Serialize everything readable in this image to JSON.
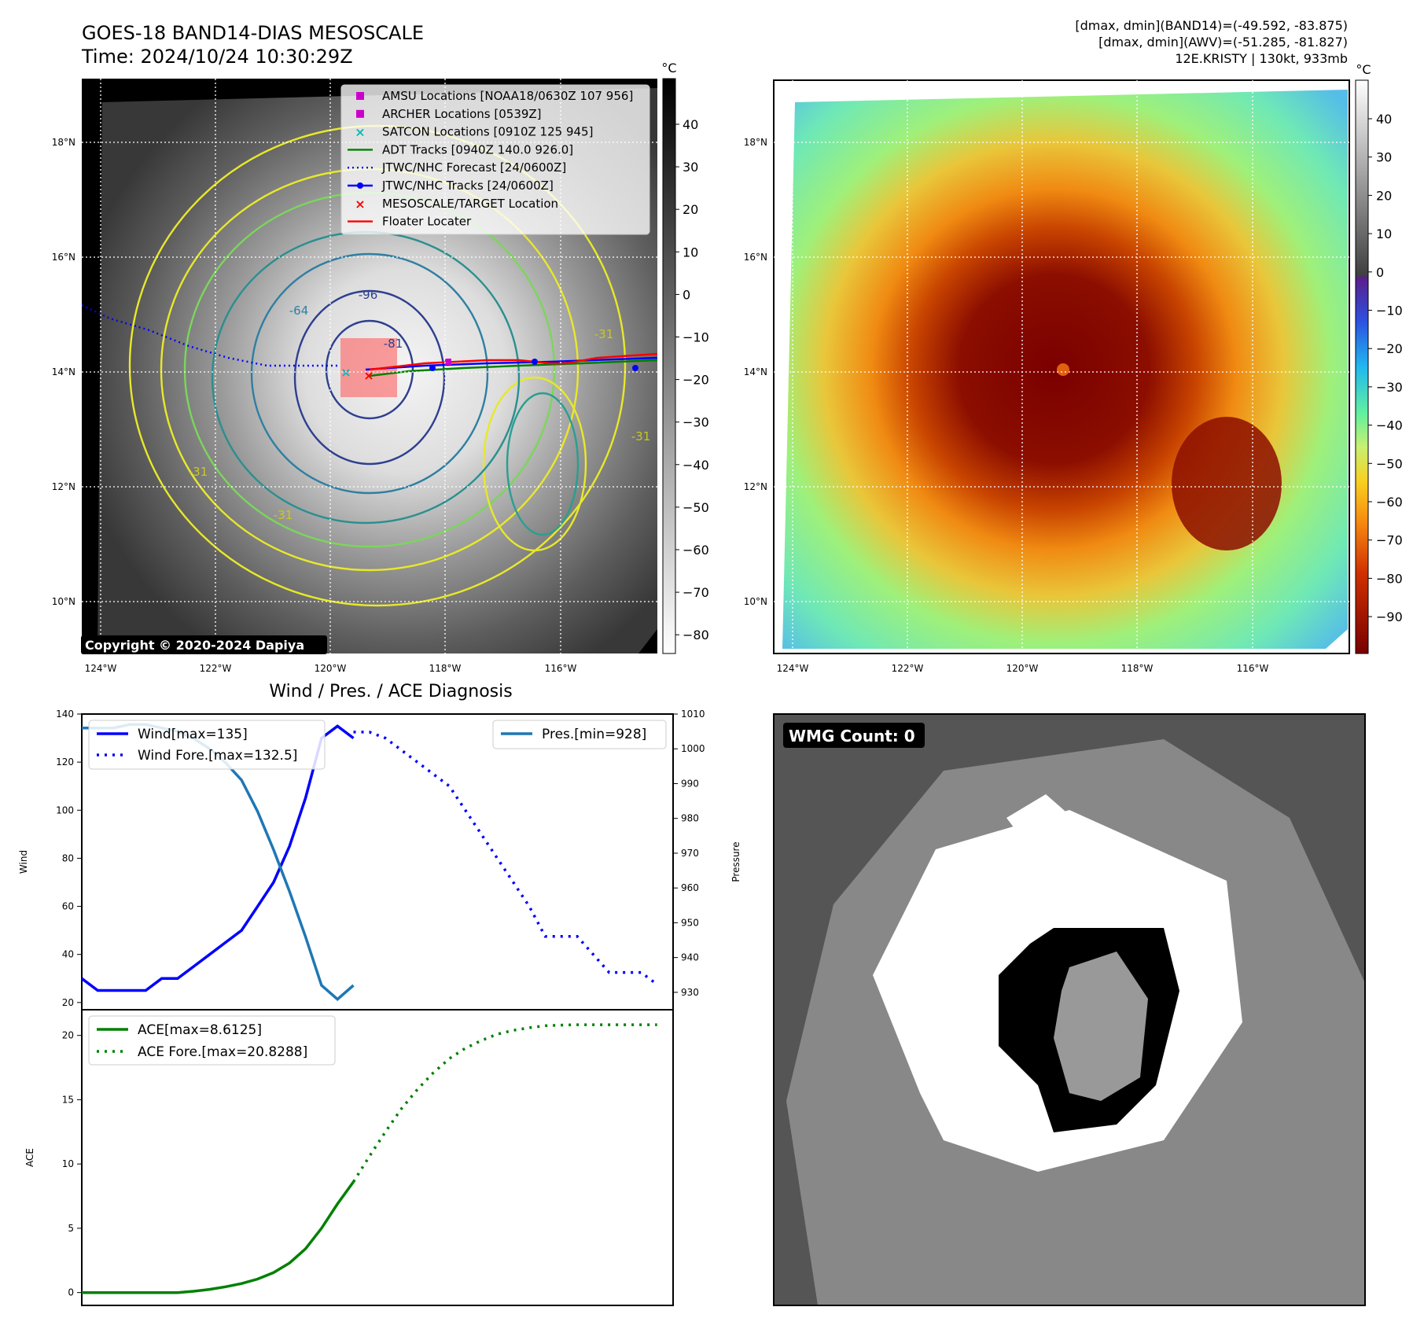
{
  "header": {
    "title_line1": "GOES-18 BAND14-DIAS MESOSCALE",
    "title_line2": "Time: 2024/10/24 10:30:29Z",
    "stats_line1": "[dmax, dmin](BAND14)=(-49.592, -83.875)",
    "stats_line2": "[dmax, dmin](AWV)=(-51.285, -81.827)",
    "stats_line3": "12E.KRISTY | 130kt, 933mb"
  },
  "map_axes": {
    "lat_labels": [
      "18°N",
      "16°N",
      "14°N",
      "12°N",
      "10°N"
    ],
    "lon_labels": [
      "124°W",
      "122°W",
      "120°W",
      "118°W",
      "116°W"
    ]
  },
  "ir_panel": {
    "copyright": "Copyright © 2020-2024 Dapiya",
    "colorbar_unit": "°C",
    "colorbar_ticks": [
      "40",
      "30",
      "20",
      "10",
      "0",
      "−10",
      "−20",
      "−30",
      "−40",
      "−50",
      "−60",
      "−70",
      "−80"
    ],
    "contour_labels": [
      "-96",
      "-81",
      "-64",
      "-31",
      "-31",
      "-31",
      "-31"
    ],
    "legend": [
      {
        "label": "AMSU Locations [NOAA18/0630Z 107 956]",
        "color": "#cc00cc",
        "style": "square"
      },
      {
        "label": "ARCHER Locations [0539Z]",
        "color": "#cc00cc",
        "style": "square"
      },
      {
        "label": "SATCON Locations [0910Z 125 945]",
        "color": "#00bbbb",
        "style": "x"
      },
      {
        "label": "ADT Tracks [0940Z 140.0 926.0]",
        "color": "#008000",
        "style": "line"
      },
      {
        "label": "JTWC/NHC Forecast [24/0600Z]",
        "color": "#0000ff",
        "style": "dotted"
      },
      {
        "label": "JTWC/NHC Tracks [24/0600Z]",
        "color": "#0000ff",
        "style": "line-dot"
      },
      {
        "label": "MESOSCALE/TARGET Location",
        "color": "#ff0000",
        "style": "x"
      },
      {
        "label": "Floater Locater",
        "color": "#ff0000",
        "style": "line"
      }
    ]
  },
  "awv_panel": {
    "colorbar_unit": "°C",
    "colorbar_ticks": [
      "40",
      "30",
      "20",
      "10",
      "0",
      "−10",
      "−20",
      "−30",
      "−40",
      "−50",
      "−60",
      "−70",
      "−80",
      "−90"
    ]
  },
  "wmg_panel": {
    "badge": "WMG Count: 0"
  },
  "chart_data": [
    {
      "type": "line",
      "title": "Wind / Pres. / ACE Diagnosis",
      "ylabel": "Wind",
      "y2label": "Pressure",
      "ylim": [
        17,
        140
      ],
      "y2lim": [
        925,
        1010
      ],
      "yticks": [
        20,
        40,
        60,
        80,
        100,
        120,
        140
      ],
      "y2ticks": [
        930,
        940,
        950,
        960,
        970,
        980,
        990,
        1000,
        1010
      ],
      "xlim": [
        0,
        37
      ],
      "series": [
        {
          "name": "Wind[max=135]",
          "axis": "left",
          "color": "#0000ff",
          "style": "solid",
          "x": [
            0,
            1,
            2,
            3,
            4,
            5,
            6,
            7,
            8,
            9,
            10,
            11,
            12,
            13,
            14,
            15,
            16,
            17
          ],
          "values": [
            30,
            25,
            25,
            25,
            25,
            30,
            30,
            35,
            40,
            45,
            50,
            60,
            70,
            85,
            105,
            130,
            135,
            130
          ]
        },
        {
          "name": "Wind Fore.[max=132.5]",
          "axis": "left",
          "color": "#0000ff",
          "style": "dotted",
          "x": [
            17,
            18,
            19,
            20,
            21,
            22,
            23,
            24,
            25,
            26,
            27,
            28,
            29,
            30,
            31,
            32,
            33,
            34,
            35,
            36
          ],
          "values": [
            132.5,
            132.5,
            130,
            125,
            120,
            115,
            110,
            100,
            90,
            80,
            70,
            60,
            47.5,
            47.5,
            47.5,
            40,
            32.5,
            32.5,
            32.5,
            27.5
          ]
        },
        {
          "name": "Pres.[min=928]",
          "axis": "right",
          "color": "#1f77b4",
          "style": "solid",
          "x": [
            0,
            1,
            2,
            3,
            4,
            5,
            6,
            7,
            8,
            9,
            10,
            11,
            12,
            13,
            14,
            15,
            16,
            17
          ],
          "values": [
            1006,
            1006,
            1006,
            1007,
            1007,
            1006,
            1005,
            1003,
            1000,
            996,
            991,
            982,
            971,
            959,
            946,
            932,
            928,
            932
          ]
        }
      ]
    },
    {
      "type": "line",
      "ylabel": "ACE",
      "ylim": [
        -1,
        22
      ],
      "yticks": [
        0,
        5,
        10,
        15,
        20
      ],
      "xlim": [
        0,
        37
      ],
      "series": [
        {
          "name": "ACE[max=8.6125]",
          "color": "#008000",
          "style": "solid",
          "x": [
            0,
            1,
            2,
            3,
            4,
            5,
            6,
            7,
            8,
            9,
            10,
            11,
            12,
            13,
            14,
            15,
            16,
            17
          ],
          "values": [
            0,
            0,
            0,
            0,
            0,
            0,
            0,
            0.1,
            0.25,
            0.45,
            0.7,
            1.05,
            1.55,
            2.3,
            3.4,
            5.0,
            6.9,
            8.6125
          ]
        },
        {
          "name": "ACE Fore.[max=20.8288]",
          "color": "#008000",
          "style": "dotted",
          "x": [
            17,
            18,
            19,
            20,
            21,
            22,
            23,
            24,
            25,
            26,
            27,
            28,
            29,
            30,
            31,
            32,
            33,
            34,
            35,
            36
          ],
          "values": [
            8.6125,
            10.6,
            12.5,
            14.3,
            15.8,
            17.1,
            18.2,
            19.0,
            19.6,
            20.1,
            20.4,
            20.6,
            20.75,
            20.8,
            20.8288,
            20.8288,
            20.8288,
            20.8288,
            20.8288,
            20.8288
          ]
        }
      ]
    }
  ]
}
